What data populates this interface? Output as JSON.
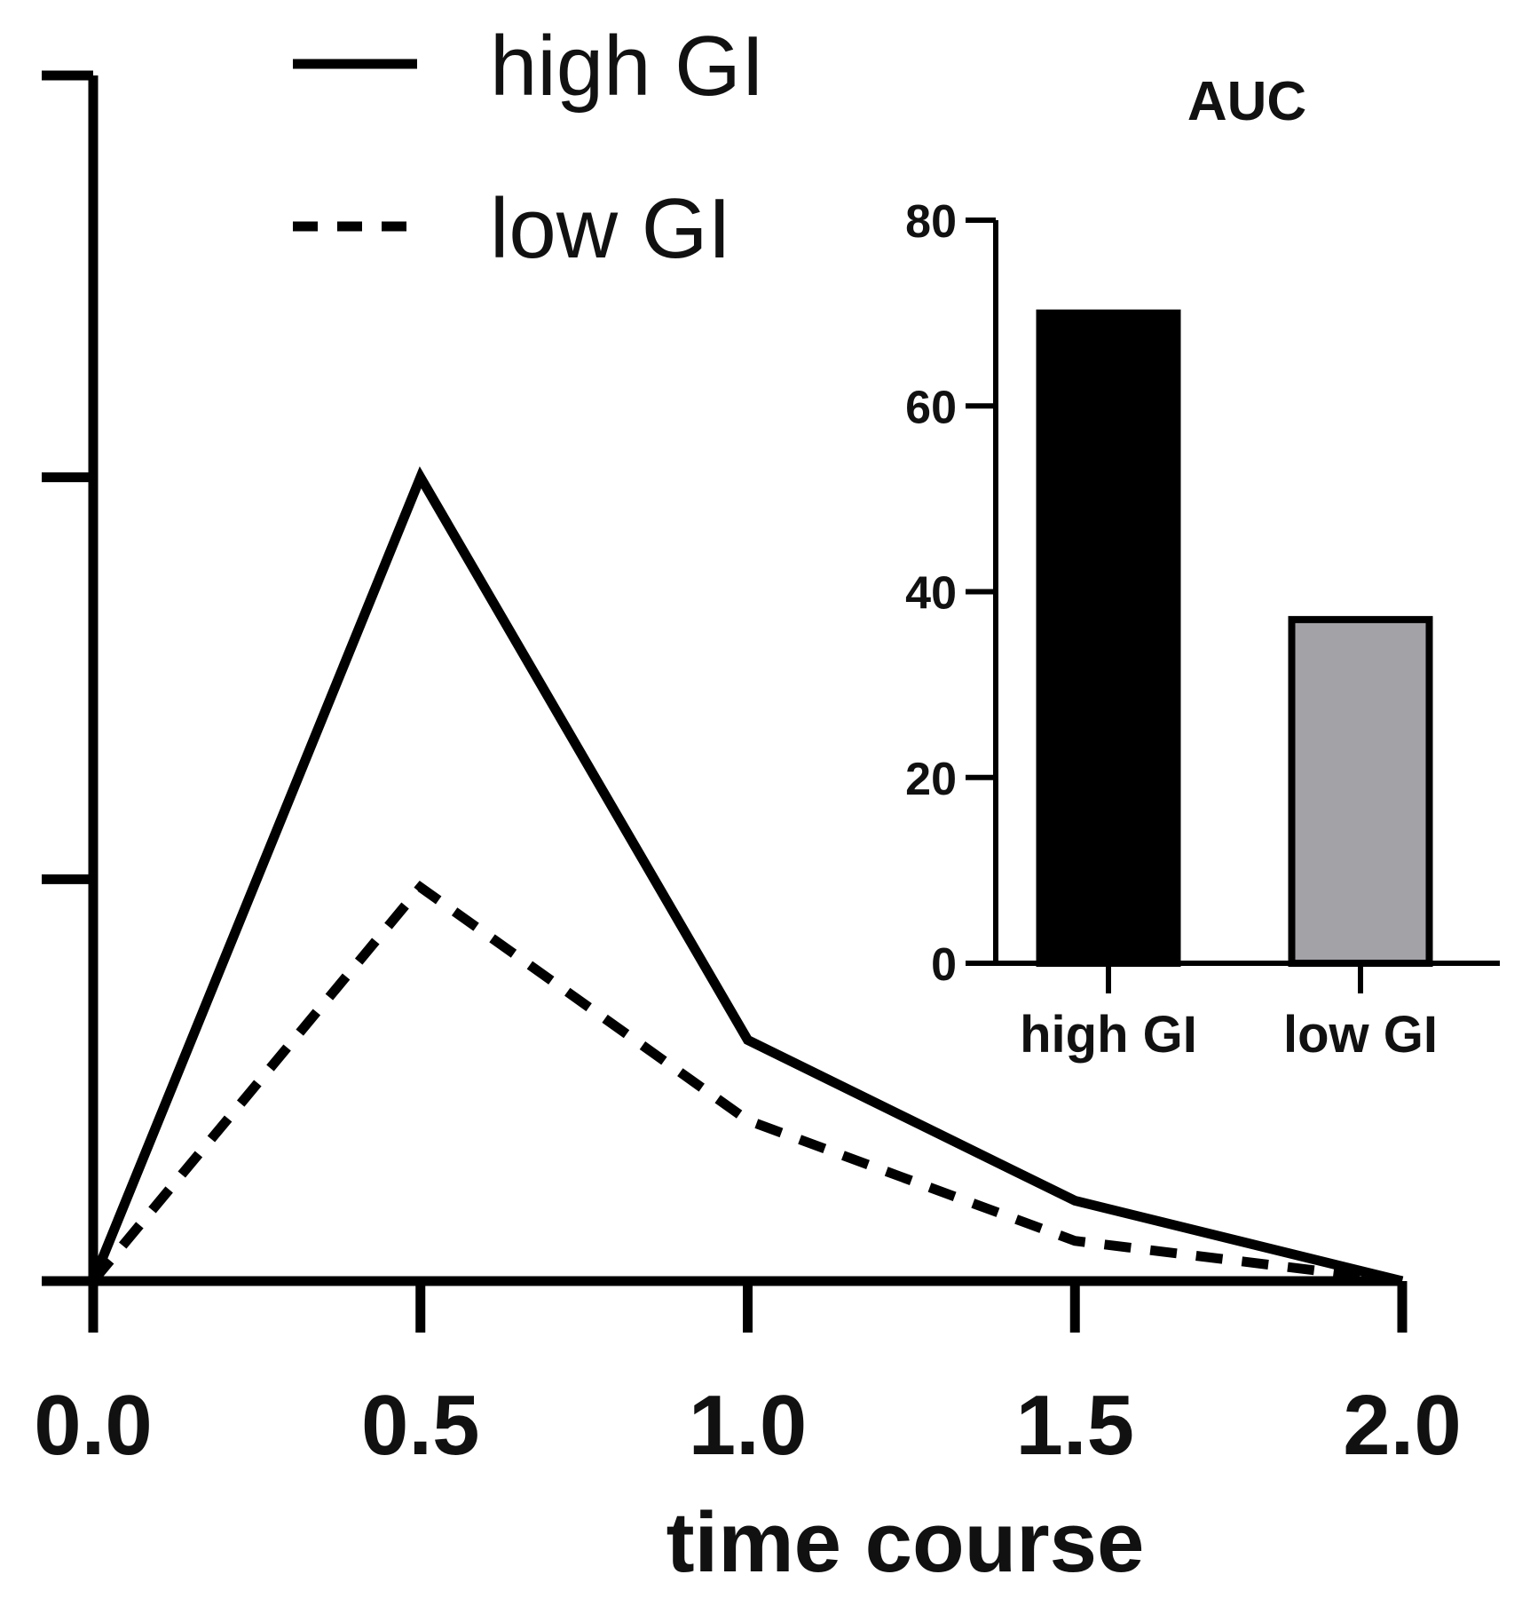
{
  "chart_data": [
    {
      "type": "line",
      "title": "",
      "xlabel": "time course",
      "ylabel": "",
      "x": [
        0.0,
        0.5,
        1.0,
        1.5,
        2.0
      ],
      "x_tick_labels": [
        "0.0",
        "0.5",
        "1.0",
        "1.5",
        "2.0"
      ],
      "xlim": [
        0.0,
        2.0
      ],
      "ylim": [
        0,
        3
      ],
      "y_ticks": [
        0,
        1,
        2,
        3
      ],
      "series": [
        {
          "name": "high GI",
          "style": "solid",
          "values": [
            0.0,
            2.0,
            0.6,
            0.2,
            0.0
          ]
        },
        {
          "name": "low GI",
          "style": "dashed",
          "values": [
            0.0,
            0.98,
            0.4,
            0.1,
            0.0
          ]
        }
      ],
      "legend": {
        "position": "top-left",
        "entries": [
          "high GI",
          "low GI"
        ]
      },
      "grid": false
    },
    {
      "type": "bar",
      "title": "AUC",
      "categories": [
        "high GI",
        "low GI"
      ],
      "values": [
        70,
        37
      ],
      "colors": [
        "#000000",
        "#a3a2a7"
      ],
      "ylim": [
        0,
        80
      ],
      "y_ticks": [
        0,
        20,
        40,
        60,
        80
      ],
      "y_tick_labels": [
        "0",
        "20",
        "40",
        "60",
        "80"
      ],
      "xlabel": "",
      "ylabel": "",
      "placement": "inset top-right"
    }
  ]
}
